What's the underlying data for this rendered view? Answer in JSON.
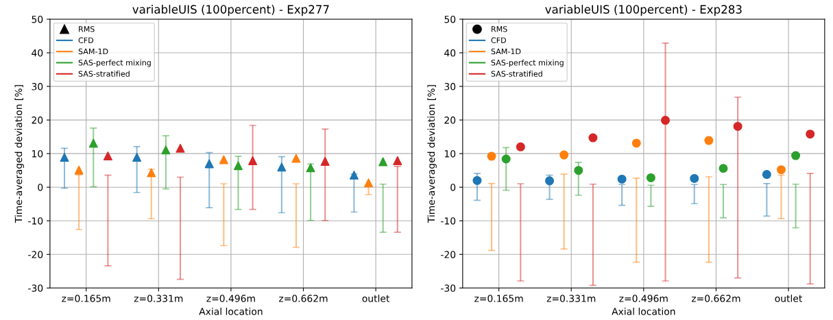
{
  "chart_data": [
    {
      "type": "scatter",
      "title": "variableUIS (100percent) - Exp277",
      "xlabel": "Axial location",
      "ylabel": "Time-averaged deviation [%]",
      "categories": [
        "z=0.165m",
        "z=0.331m",
        "z=0.496m",
        "z=0.662m",
        "outlet"
      ],
      "ylim": [
        -30,
        50
      ],
      "yticks": [
        -30,
        -20,
        -10,
        0,
        10,
        20,
        30,
        40,
        50
      ],
      "grid": true,
      "legend": "top left",
      "marker": "triangle",
      "series": [
        {
          "name": "RMS",
          "color": "#000000",
          "values": [
            null,
            null,
            null,
            null,
            null
          ]
        },
        {
          "name": "CFD",
          "color": "#1f77b4",
          "values": [
            8.9,
            8.9,
            7.0,
            6.0,
            3.6
          ],
          "errors": [
            [
              -0.3,
              11.6
            ],
            [
              -1.6,
              12.1
            ],
            [
              -6.1,
              10.3
            ],
            [
              -7.6,
              9.1
            ],
            [
              -7.4,
              3.9
            ]
          ]
        },
        {
          "name": "SAM-1D",
          "color": "#ff7f0e",
          "values": [
            5.1,
            4.3,
            8.2,
            8.6,
            1.3
          ],
          "errors": [
            [
              -12.6,
              3.7
            ],
            [
              -9.4,
              5.3
            ],
            [
              -17.4,
              1.0
            ],
            [
              -17.9,
              1.0
            ],
            [
              -2.2,
              0.6
            ]
          ]
        },
        {
          "name": "SAS-perfect mixing",
          "color": "#2ca02c",
          "values": [
            13.1,
            11.1,
            6.4,
            5.8,
            7.6
          ],
          "errors": [
            [
              0.1,
              17.6
            ],
            [
              -0.5,
              15.3
            ],
            [
              -6.6,
              9.2
            ],
            [
              -9.9,
              6.9
            ],
            [
              -13.4,
              0.9
            ]
          ]
        },
        {
          "name": "SAS-stratified",
          "color": "#d62728",
          "values": [
            9.3,
            11.6,
            7.9,
            7.7,
            7.9
          ],
          "errors": [
            [
              -23.4,
              3.6
            ],
            [
              -27.4,
              3.0
            ],
            [
              -6.6,
              18.4
            ],
            [
              -9.9,
              17.3
            ],
            [
              -13.4,
              6.2
            ]
          ]
        }
      ]
    },
    {
      "type": "scatter",
      "title": "variableUIS (100percent) - Exp283",
      "xlabel": "Axial location",
      "ylabel": "Time-averaged deviation [%]",
      "categories": [
        "z=0.165m",
        "z=0.331m",
        "z=0.496m",
        "z=0.662m",
        "outlet"
      ],
      "ylim": [
        -30,
        50
      ],
      "yticks": [
        -30,
        -20,
        -10,
        0,
        10,
        20,
        30,
        40,
        50
      ],
      "grid": true,
      "legend": "top left",
      "marker": "circle",
      "series": [
        {
          "name": "RMS",
          "color": "#000000",
          "values": [
            null,
            null,
            null,
            null,
            null
          ]
        },
        {
          "name": "CFD",
          "color": "#1f77b4",
          "values": [
            2.0,
            1.9,
            2.4,
            2.6,
            3.8
          ],
          "errors": [
            [
              -3.9,
              4.1
            ],
            [
              -3.6,
              3.6
            ],
            [
              -5.4,
              0.8
            ],
            [
              -4.9,
              0.8
            ],
            [
              -8.6,
              1.1
            ]
          ]
        },
        {
          "name": "SAM-1D",
          "color": "#ff7f0e",
          "values": [
            9.2,
            9.6,
            13.1,
            13.9,
            5.2
          ],
          "errors": [
            [
              -18.8,
              1.1
            ],
            [
              -18.4,
              3.9
            ],
            [
              -22.3,
              2.7
            ],
            [
              -22.3,
              3.1
            ],
            [
              -9.3,
              3.6
            ]
          ]
        },
        {
          "name": "SAS-perfect mixing",
          "color": "#2ca02c",
          "values": [
            8.4,
            5.0,
            2.8,
            5.6,
            9.4
          ],
          "errors": [
            [
              -0.9,
              11.8
            ],
            [
              -2.4,
              7.4
            ],
            [
              -5.7,
              0.6
            ],
            [
              -9.1,
              0.8
            ],
            [
              -12.1,
              0.9
            ]
          ]
        },
        {
          "name": "SAS-stratified",
          "color": "#d62728",
          "values": [
            12.0,
            14.7,
            19.9,
            18.1,
            15.8
          ],
          "errors": [
            [
              -27.9,
              1.0
            ],
            [
              -29.2,
              0.9
            ],
            [
              -27.9,
              42.9
            ],
            [
              -27.0,
              26.8
            ],
            [
              -28.8,
              4.1
            ]
          ]
        }
      ]
    }
  ]
}
